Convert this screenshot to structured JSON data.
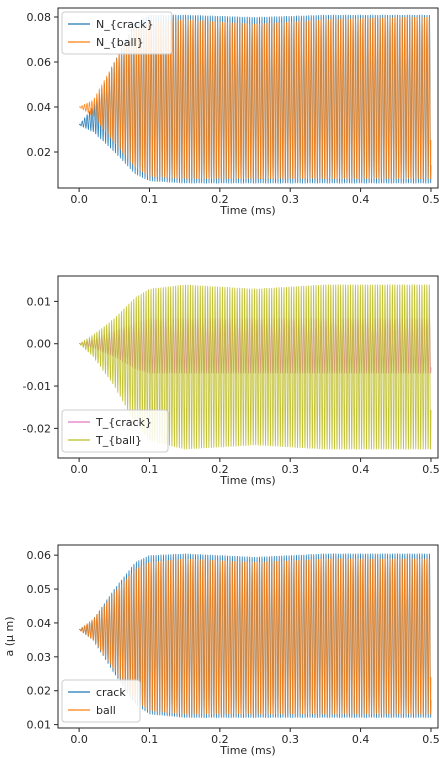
{
  "chart_data": [
    {
      "type": "line",
      "title": "",
      "xlabel": "Time (ms)",
      "ylabel": "",
      "xlim": [
        -0.03,
        0.51
      ],
      "ylim": [
        0.004,
        0.084
      ],
      "x_ticks": [
        0.0,
        0.1,
        0.2,
        0.3,
        0.4,
        0.5
      ],
      "x_tick_labels": [
        "0.0",
        "0.1",
        "0.2",
        "0.3",
        "0.4",
        "0.5"
      ],
      "y_ticks": [
        0.02,
        0.04,
        0.06,
        0.08
      ],
      "y_tick_labels": [
        "0.02",
        "0.04",
        "0.06",
        "0.08"
      ],
      "legend": "upper-left",
      "grid": false,
      "series": [
        {
          "name": "N_{crack}",
          "color": "#1f77b4",
          "envelope": {
            "t": [
              0.0,
              0.02,
              0.05,
              0.08,
              0.1,
              0.15,
              0.25,
              0.35,
              0.45,
              0.5
            ],
            "upper": [
              0.032,
              0.04,
              0.06,
              0.078,
              0.081,
              0.081,
              0.08,
              0.081,
              0.081,
              0.081
            ],
            "lower": [
              0.032,
              0.029,
              0.02,
              0.01,
              0.007,
              0.006,
              0.006,
              0.006,
              0.006,
              0.006
            ]
          }
        },
        {
          "name": "N_{ball}",
          "color": "#ff7f0e",
          "envelope": {
            "t": [
              0.0,
              0.02,
              0.05,
              0.08,
              0.1,
              0.15,
              0.25,
              0.35,
              0.45,
              0.5
            ],
            "upper": [
              0.04,
              0.043,
              0.06,
              0.075,
              0.078,
              0.079,
              0.077,
              0.079,
              0.08,
              0.08
            ],
            "lower": [
              0.04,
              0.036,
              0.024,
              0.013,
              0.009,
              0.008,
              0.008,
              0.008,
              0.008,
              0.008
            ]
          }
        }
      ]
    },
    {
      "type": "line",
      "title": "",
      "xlabel": "Time (ms)",
      "ylabel": "",
      "xlim": [
        -0.03,
        0.51
      ],
      "ylim": [
        -0.027,
        0.016
      ],
      "x_ticks": [
        0.0,
        0.1,
        0.2,
        0.3,
        0.4,
        0.5
      ],
      "x_tick_labels": [
        "0.0",
        "0.1",
        "0.2",
        "0.3",
        "0.4",
        "0.5"
      ],
      "y_ticks": [
        0.01,
        0.0,
        -0.01,
        -0.02
      ],
      "y_tick_labels": [
        "0.01",
        "0.00",
        "-0.01",
        "-0.02"
      ],
      "legend": "lower-left",
      "grid": false,
      "series": [
        {
          "name": "T_{crack}",
          "color": "#e377c2",
          "envelope": {
            "t": [
              0.0,
              0.02,
              0.05,
              0.08,
              0.1,
              0.15,
              0.25,
              0.35,
              0.45,
              0.5
            ],
            "upper": [
              0.0,
              0.001,
              0.003,
              0.005,
              0.006,
              0.006,
              0.006,
              0.006,
              0.006,
              0.006
            ],
            "lower": [
              0.0,
              -0.001,
              -0.003,
              -0.006,
              -0.007,
              -0.007,
              -0.007,
              -0.007,
              -0.007,
              -0.007
            ]
          }
        },
        {
          "name": "T_{ball}",
          "color": "#bcbd22",
          "envelope": {
            "t": [
              0.0,
              0.02,
              0.05,
              0.08,
              0.1,
              0.15,
              0.25,
              0.35,
              0.45,
              0.5
            ],
            "upper": [
              0.0,
              0.002,
              0.006,
              0.011,
              0.013,
              0.014,
              0.013,
              0.014,
              0.014,
              0.014
            ],
            "lower": [
              0.0,
              -0.003,
              -0.01,
              -0.019,
              -0.023,
              -0.025,
              -0.024,
              -0.025,
              -0.025,
              -0.025
            ]
          }
        }
      ]
    },
    {
      "type": "line",
      "title": "",
      "xlabel": "Time (ms)",
      "ylabel": "a (μ m)",
      "xlim": [
        -0.03,
        0.51
      ],
      "ylim": [
        0.009,
        0.063
      ],
      "x_ticks": [
        0.0,
        0.1,
        0.2,
        0.3,
        0.4,
        0.5
      ],
      "x_tick_labels": [
        "0.0",
        "0.1",
        "0.2",
        "0.3",
        "0.4",
        "0.5"
      ],
      "y_ticks": [
        0.01,
        0.02,
        0.03,
        0.04,
        0.05,
        0.06
      ],
      "y_tick_labels": [
        "0.01",
        "0.02",
        "0.03",
        "0.04",
        "0.05",
        "0.06"
      ],
      "legend": "lower-left",
      "grid": false,
      "series": [
        {
          "name": "crack",
          "color": "#1f77b4",
          "envelope": {
            "t": [
              0.0,
              0.02,
              0.05,
              0.08,
              0.1,
              0.15,
              0.25,
              0.35,
              0.45,
              0.5
            ],
            "upper": [
              0.038,
              0.041,
              0.05,
              0.058,
              0.06,
              0.0605,
              0.0595,
              0.0605,
              0.0605,
              0.0605
            ],
            "lower": [
              0.038,
              0.035,
              0.025,
              0.016,
              0.013,
              0.012,
              0.012,
              0.012,
              0.012,
              0.012
            ]
          }
        },
        {
          "name": "ball",
          "color": "#ff7f0e",
          "envelope": {
            "t": [
              0.0,
              0.02,
              0.05,
              0.08,
              0.1,
              0.15,
              0.25,
              0.35,
              0.45,
              0.5
            ],
            "upper": [
              0.038,
              0.041,
              0.049,
              0.056,
              0.058,
              0.059,
              0.058,
              0.059,
              0.059,
              0.059
            ],
            "lower": [
              0.038,
              0.035,
              0.026,
              0.017,
              0.014,
              0.013,
              0.013,
              0.013,
              0.013,
              0.013
            ]
          }
        }
      ]
    }
  ]
}
